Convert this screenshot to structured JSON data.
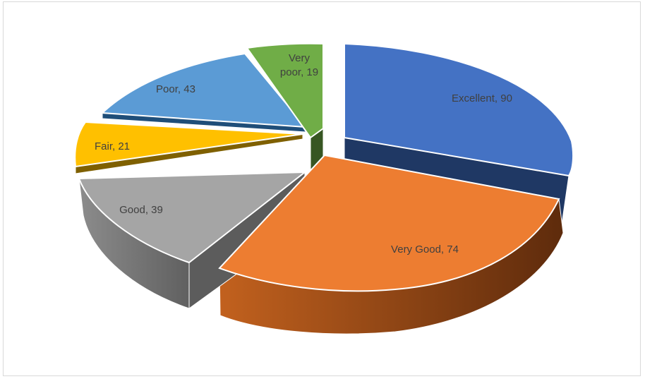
{
  "chart_data": {
    "type": "pie",
    "style": "3d-exploded",
    "title": "",
    "legend": "none",
    "slices": [
      {
        "label": "Excellent",
        "value": 90,
        "text": "Excellent, 90",
        "color": "#4472c4",
        "side": "#1f3864"
      },
      {
        "label": "Very Good",
        "value": 74,
        "text": "Very Good, 74",
        "color": "#ed7d31",
        "side": "#843c0c"
      },
      {
        "label": "Good",
        "value": 39,
        "text": "Good, 39",
        "color": "#a5a5a5",
        "side": "#6e6e6e"
      },
      {
        "label": "Fair",
        "value": 21,
        "text": "Fair, 21",
        "color": "#ffc000",
        "side": "#7f6000"
      },
      {
        "label": "Poor",
        "value": 43,
        "text": "Poor, 43",
        "color": "#5b9bd5",
        "side": "#1f4e79"
      },
      {
        "label": "Very poor",
        "value": 19,
        "text_lines": [
          "Very",
          "poor, 19"
        ],
        "color": "#70ad47",
        "side": "#375623"
      }
    ]
  }
}
